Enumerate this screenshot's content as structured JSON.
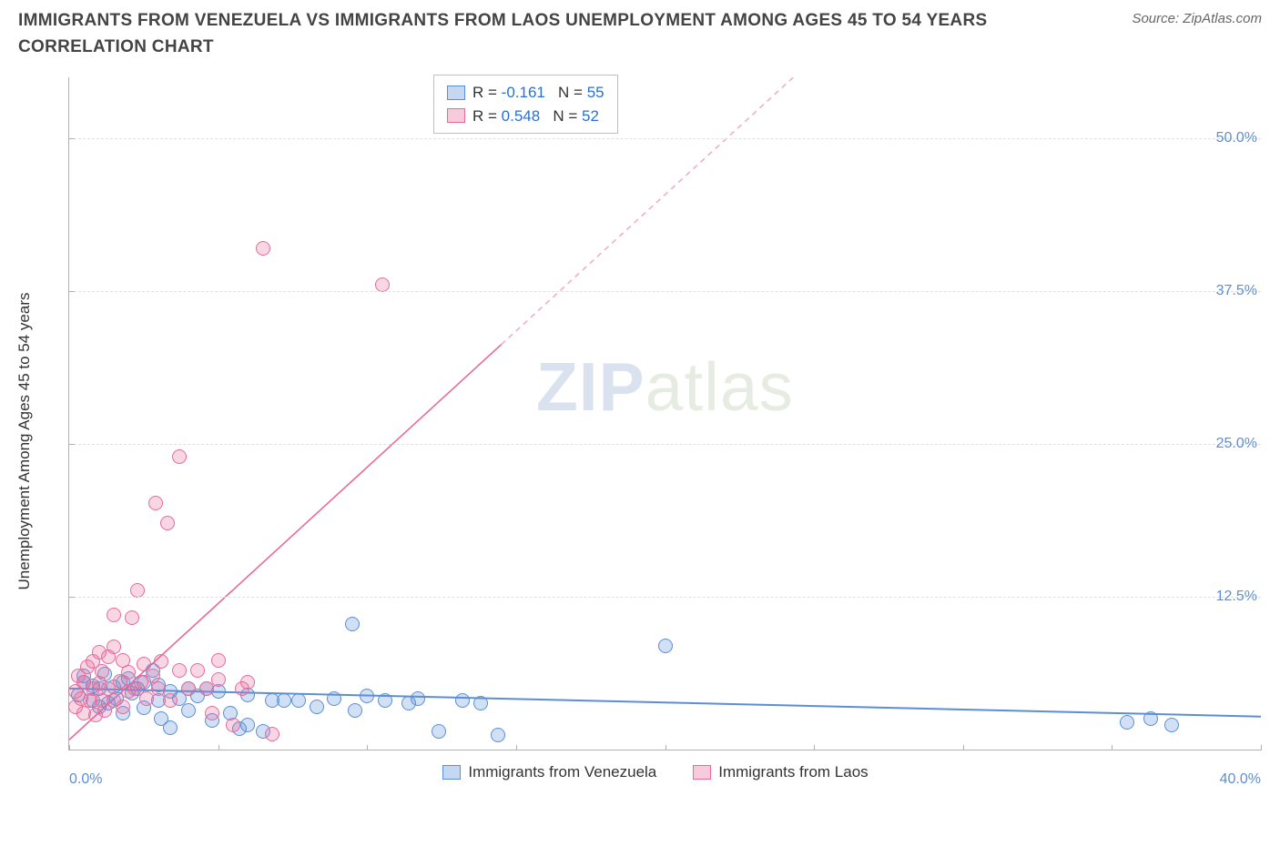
{
  "title": "IMMIGRANTS FROM VENEZUELA VS IMMIGRANTS FROM LAOS UNEMPLOYMENT AMONG AGES 45 TO 54 YEARS CORRELATION CHART",
  "source": "Source: ZipAtlas.com",
  "watermark_a": "ZIP",
  "watermark_b": "atlas",
  "chart": {
    "type": "scatter",
    "background_color": "#ffffff",
    "grid_color": "#e0e0e0",
    "axis_color": "#b0b0b0",
    "ylabel": "Unemployment Among Ages 45 to 54 years",
    "ylabel_fontsize": 17,
    "tick_label_color": "#5a8fd6",
    "tick_fontsize": 16,
    "xlim": [
      0,
      40
    ],
    "ylim": [
      0,
      55
    ],
    "yticks": [
      12.5,
      25.0,
      37.5,
      50.0
    ],
    "ytick_labels": [
      "12.5%",
      "25.0%",
      "37.5%",
      "50.0%"
    ],
    "xticks": [
      0,
      5,
      10,
      15,
      20,
      25,
      30,
      35,
      40
    ],
    "xtick_major": [
      0,
      40
    ],
    "xtick_labels": {
      "0": "0.0%",
      "40": "40.0%"
    },
    "marker_radius": 8,
    "marker_border_width": 1.2,
    "marker_fill_opacity": 0.28,
    "series": [
      {
        "name": "Immigrants from Venezuela",
        "color_border": "#5a8fd6",
        "color_fill": "#5a8fd6",
        "r": -0.161,
        "n": 55,
        "trend": {
          "y_at_x0": 5.0,
          "y_at_xmax": 2.7,
          "width": 2,
          "dash": "none"
        },
        "points": [
          [
            0.3,
            4.5
          ],
          [
            0.5,
            5.5
          ],
          [
            0.5,
            6.0
          ],
          [
            0.8,
            5.2
          ],
          [
            0.8,
            4.0
          ],
          [
            1.0,
            3.5
          ],
          [
            1.0,
            5.0
          ],
          [
            1.2,
            6.2
          ],
          [
            1.3,
            3.8
          ],
          [
            1.5,
            5.1
          ],
          [
            1.6,
            4.2
          ],
          [
            1.8,
            5.5
          ],
          [
            1.8,
            3.0
          ],
          [
            2.0,
            5.8
          ],
          [
            2.1,
            4.6
          ],
          [
            2.3,
            5.0
          ],
          [
            2.5,
            3.4
          ],
          [
            2.5,
            5.5
          ],
          [
            2.8,
            6.5
          ],
          [
            3.0,
            4.0
          ],
          [
            3.0,
            5.3
          ],
          [
            3.1,
            2.5
          ],
          [
            3.4,
            4.8
          ],
          [
            3.4,
            1.8
          ],
          [
            3.7,
            4.2
          ],
          [
            4.0,
            5.0
          ],
          [
            4.0,
            3.2
          ],
          [
            4.3,
            4.4
          ],
          [
            4.6,
            5.0
          ],
          [
            4.8,
            2.4
          ],
          [
            5.0,
            4.8
          ],
          [
            5.4,
            3.0
          ],
          [
            5.7,
            1.7
          ],
          [
            6.0,
            4.5
          ],
          [
            6.0,
            2.0
          ],
          [
            6.5,
            1.5
          ],
          [
            6.8,
            4.0
          ],
          [
            7.2,
            4.0
          ],
          [
            7.7,
            4.0
          ],
          [
            8.3,
            3.5
          ],
          [
            8.9,
            4.2
          ],
          [
            9.5,
            10.3
          ],
          [
            9.6,
            3.2
          ],
          [
            10.0,
            4.4
          ],
          [
            10.6,
            4.0
          ],
          [
            11.4,
            3.8
          ],
          [
            11.7,
            4.2
          ],
          [
            12.4,
            1.5
          ],
          [
            13.2,
            4.0
          ],
          [
            13.8,
            3.8
          ],
          [
            14.4,
            1.2
          ],
          [
            20.0,
            8.5
          ],
          [
            35.5,
            2.2
          ],
          [
            36.3,
            2.5
          ],
          [
            37.0,
            2.0
          ]
        ]
      },
      {
        "name": "Immigrants from Laos",
        "color_border": "#e86a9a",
        "color_fill": "#e86a9a",
        "r": 0.548,
        "n": 52,
        "trend": {
          "y_at_x0": 0.8,
          "y_at_xmax": 90,
          "solid_until_x": 14.5,
          "width": 1.6,
          "dash_pattern": "6,5"
        },
        "points": [
          [
            0.2,
            3.5
          ],
          [
            0.2,
            4.8
          ],
          [
            0.3,
            6.0
          ],
          [
            0.4,
            4.2
          ],
          [
            0.5,
            5.5
          ],
          [
            0.5,
            3.0
          ],
          [
            0.6,
            6.8
          ],
          [
            0.7,
            4.0
          ],
          [
            0.8,
            5.0
          ],
          [
            0.8,
            7.2
          ],
          [
            0.9,
            2.8
          ],
          [
            1.0,
            8.0
          ],
          [
            1.0,
            5.4
          ],
          [
            1.1,
            4.0
          ],
          [
            1.1,
            6.4
          ],
          [
            1.2,
            3.2
          ],
          [
            1.3,
            7.6
          ],
          [
            1.3,
            5.0
          ],
          [
            1.5,
            4.0
          ],
          [
            1.5,
            8.4
          ],
          [
            1.5,
            11.0
          ],
          [
            1.7,
            5.6
          ],
          [
            1.8,
            7.3
          ],
          [
            1.8,
            3.5
          ],
          [
            2.0,
            4.8
          ],
          [
            2.0,
            6.3
          ],
          [
            2.1,
            10.8
          ],
          [
            2.2,
            5.0
          ],
          [
            2.3,
            13.0
          ],
          [
            2.4,
            5.5
          ],
          [
            2.5,
            7.0
          ],
          [
            2.6,
            4.2
          ],
          [
            2.8,
            6.0
          ],
          [
            2.9,
            20.2
          ],
          [
            3.0,
            5.0
          ],
          [
            3.1,
            7.2
          ],
          [
            3.3,
            18.5
          ],
          [
            3.4,
            4.0
          ],
          [
            3.7,
            6.5
          ],
          [
            3.7,
            24.0
          ],
          [
            4.0,
            5.0
          ],
          [
            4.3,
            6.5
          ],
          [
            4.6,
            5.0
          ],
          [
            4.8,
            3.0
          ],
          [
            5.0,
            7.3
          ],
          [
            5.0,
            5.7
          ],
          [
            5.5,
            2.0
          ],
          [
            5.8,
            5.0
          ],
          [
            6.0,
            5.5
          ],
          [
            6.5,
            41.0
          ],
          [
            6.8,
            1.3
          ],
          [
            10.5,
            38.0
          ]
        ]
      }
    ]
  },
  "legend_top": {
    "label_r": "R =",
    "label_n": "N ="
  },
  "legend_bottom": [
    "Immigrants from Venezuela",
    "Immigrants from Laos"
  ]
}
